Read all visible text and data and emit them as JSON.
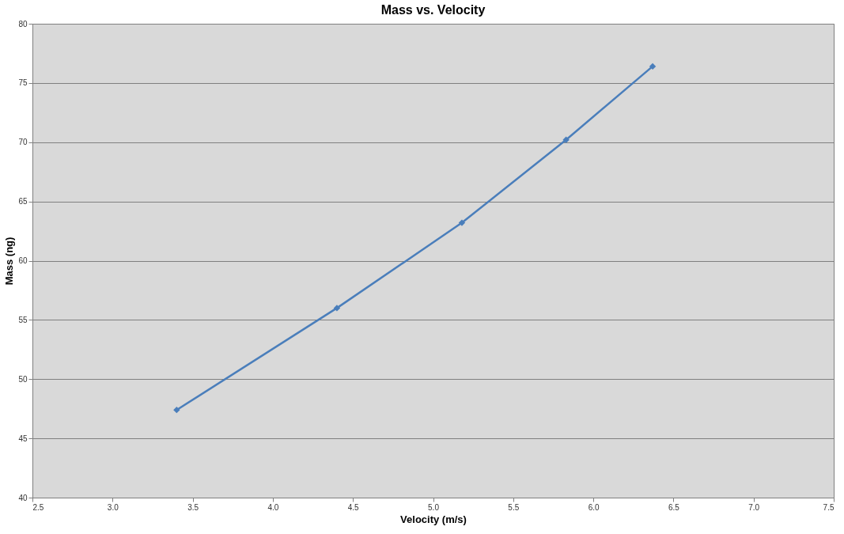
{
  "chart_data": {
    "type": "line",
    "title": "Mass vs. Velocity",
    "xlabel": "Velocity (m/s)",
    "ylabel": "Mass (ng)",
    "x": [
      3.4,
      4.4,
      5.18,
      5.83,
      6.37
    ],
    "series": [
      {
        "color": "#4a7ebb",
        "values": [
          47.4,
          56.0,
          63.2,
          70.2,
          76.4
        ]
      }
    ],
    "xlim": [
      2.5,
      7.5
    ],
    "xticks": [
      {
        "value": 2.5,
        "label": "2.5"
      },
      {
        "value": 3,
        "label": "3.0"
      },
      {
        "value": 3.5,
        "label": "3.5"
      },
      {
        "value": 4,
        "label": "4.0"
      },
      {
        "value": 4.5,
        "label": "4.5"
      },
      {
        "value": 5,
        "label": "5.0"
      },
      {
        "value": 5.5,
        "label": "5.5"
      },
      {
        "value": 6,
        "label": "6.0"
      },
      {
        "value": 6.5,
        "label": "6.5"
      },
      {
        "value": 7,
        "label": "7.0"
      },
      {
        "value": 7.5,
        "label": "7.5"
      }
    ],
    "ylim": [
      40,
      80
    ],
    "yticks": [
      40,
      45,
      50,
      55,
      60,
      65,
      70,
      75,
      80
    ],
    "grid": "y",
    "marker": "diamond",
    "line_style": "solid"
  }
}
